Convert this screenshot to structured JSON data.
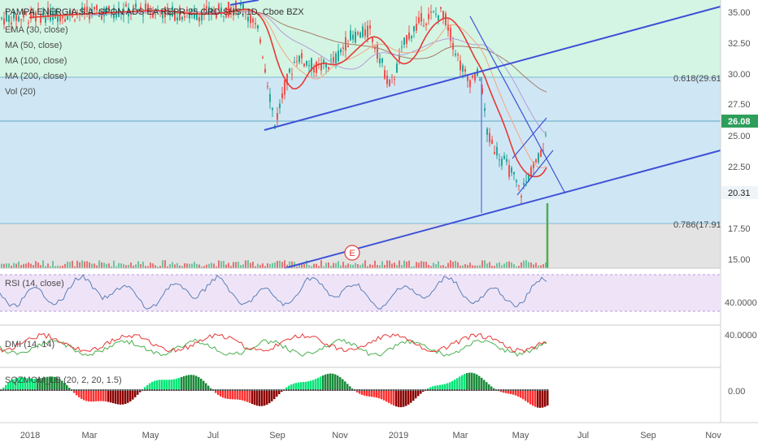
{
  "chart_data": {
    "type": "candlestick",
    "title": "PAMPA ENERGIA S.A. SPON ADS EA REPR 25 ORD SHS, 1D, Cboe BZX",
    "price_labels": {
      "current": "26.08",
      "low_marker": "20.31",
      "fib_618": "0.618(29.61)",
      "fib_786": "0.786(17.91)"
    },
    "legend": [
      "EMA (30, close)",
      "MA (50, close)",
      "MA (100, close)",
      "MA (200, close)",
      "Vol (20)"
    ],
    "price_axis": {
      "ticks": [
        "35.00",
        "32.50",
        "30.00",
        "27.50",
        "25.00",
        "22.50",
        "17.50",
        "15.00"
      ],
      "ylim": [
        14.5,
        36
      ]
    },
    "time_axis": {
      "ticks": [
        "2018",
        "Mar",
        "May",
        "Jul",
        "Sep",
        "Nov",
        "2019",
        "Mar",
        "May",
        "Jul",
        "Sep",
        "Nov"
      ]
    },
    "levels": {
      "fib_618": 29.61,
      "fib_786": 17.91,
      "current": 26.08
    },
    "earnings_marker": "E",
    "panes": [
      {
        "name": "RSI (14, close)",
        "ticks": [
          "40.0000"
        ]
      },
      {
        "name": "DMI (14, 14)",
        "ticks": [
          "40.0000"
        ]
      },
      {
        "name": "SQZMOM_LB (20, 2, 20, 1.5)",
        "ticks": [
          "0.00"
        ]
      }
    ],
    "colors": {
      "up": "#26a69a",
      "down": "#ef5350",
      "trend": "#3f51d6",
      "ema30": "#e53935",
      "ma50": "#f4a582",
      "ma100": "#b39ddb",
      "ma200": "#a67d68"
    }
  }
}
